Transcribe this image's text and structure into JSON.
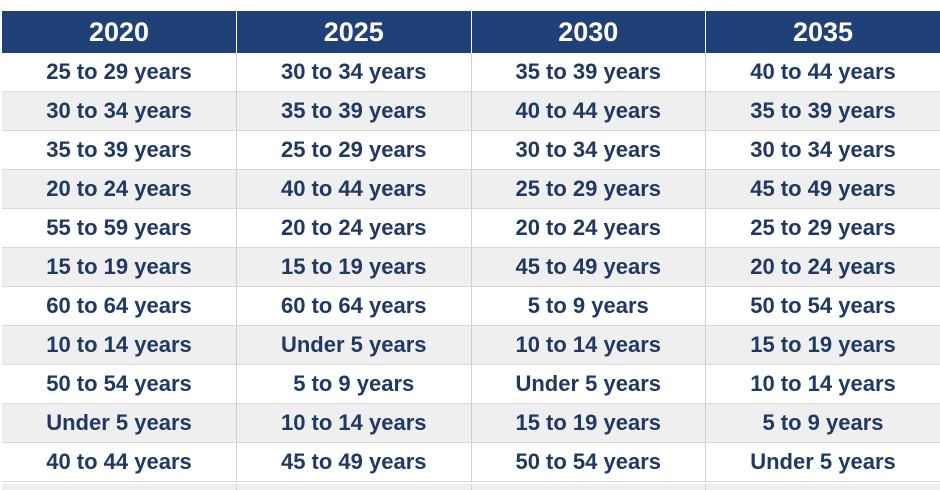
{
  "table": {
    "headers": [
      "2020",
      "2025",
      "2030",
      "2035"
    ],
    "rows": [
      [
        "25 to 29 years",
        "30 to 34 years",
        "35 to 39 years",
        "40 to 44 years"
      ],
      [
        "30 to 34 years",
        "35 to 39 years",
        "40 to 44 years",
        "35 to 39 years"
      ],
      [
        "35 to 39 years",
        "25 to 29 years",
        "30 to 34 years",
        "30 to 34 years"
      ],
      [
        "20 to 24 years",
        "40 to 44 years",
        "25 to 29 years",
        "45 to 49 years"
      ],
      [
        "55 to 59 years",
        "20 to 24 years",
        "20 to 24 years",
        "25 to 29 years"
      ],
      [
        "15 to 19 years",
        "15 to 19 years",
        "45 to 49 years",
        "20 to 24 years"
      ],
      [
        "60 to 64 years",
        "60 to 64 years",
        "5 to 9 years",
        "50 to 54 years"
      ],
      [
        "10 to 14 years",
        "Under 5 years",
        "10 to 14 years",
        "15 to 19 years"
      ],
      [
        "50 to 54 years",
        "5 to 9 years",
        "Under 5 years",
        "10 to 14 years"
      ],
      [
        "Under 5 years",
        "10 to 14 years",
        "15 to 19 years",
        "5 to 9 years"
      ],
      [
        "40 to 44 years",
        "45 to 49 years",
        "50 to 54 years",
        "Under 5 years"
      ]
    ]
  },
  "colors": {
    "header_background": "#1f4177",
    "header_text": "#ffffff",
    "cell_text": "#1f3864",
    "row_alternate": "#efefef"
  }
}
